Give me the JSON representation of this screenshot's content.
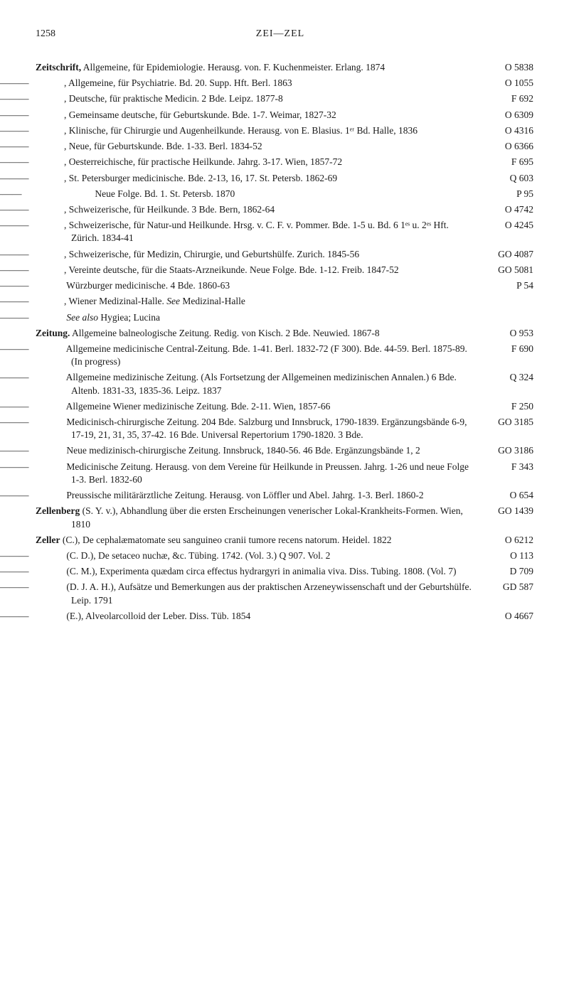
{
  "header": {
    "page_number": "1258",
    "running_head": "ZEI—ZEL"
  },
  "entries": [
    {
      "head": "Zeitschrift,",
      "text": " Allgemeine, für Epidemiologie. Herausg. von. F. Kuchenmeister. Erlang. 1874",
      "code": "O 5838",
      "indent": 0
    },
    {
      "text": ", Allgemeine, für Psychiatrie. Bd. 20. Supp. Hft. Berl. 1863",
      "code": "O 1055",
      "indent": 1
    },
    {
      "text": ", Deutsche, für praktische Medicin. 2 Bde. Leipz. 1877-8",
      "code": "F 692",
      "indent": 1
    },
    {
      "text": ", Gemeinsame deutsche, für Geburtskunde. Bde. 1-7. Weimar, 1827-32",
      "code": "O 6309",
      "indent": 1
    },
    {
      "text": ", Klinische, für Chirurgie und Augenheilkunde. Herausg. von E. Blasius. 1ᵉʳ Bd. Halle, 1836",
      "code": "O 4316",
      "indent": 1
    },
    {
      "text": ", Neue, für Geburtskunde. Bde. 1-33. Berl. 1834-52",
      "code": "O 6366",
      "indent": 1
    },
    {
      "text": ", Oesterreichische, für practische Heilkunde. Jahrg. 3-17. Wien, 1857-72",
      "code": "F 695",
      "indent": 1
    },
    {
      "text": ", St. Petersburger medicinische. Bde. 2-13, 16, 17. St. Petersb. 1862-69",
      "code": "Q 603",
      "indent": 1
    },
    {
      "text": " Neue Folge. Bd. 1. St. Petersb. 1870",
      "code": "P 95",
      "indent": 2
    },
    {
      "text": ", Schweizerische, für Heilkunde. 3 Bde. Bern, 1862-64",
      "code": "O 4742",
      "indent": 1
    },
    {
      "text": ", Schweizerische, für Natur-und Heilkunde. Hrsg. v. C. F. v. Pommer. Bde. 1-5 u. Bd. 6 1ᵉˢ u. 2ᵉˢ Hft. Zürich. 1834-41",
      "code": "O 4245",
      "indent": 1
    },
    {
      "text": ", Schweizerische, für Medizin, Chirurgie, und Geburtshülfe. Zurich. 1845-56",
      "code": "GO 4087",
      "indent": 1
    },
    {
      "text": ", Vereinte deutsche, für die Staats-Arzneikunde. Neue Folge. Bde. 1-12. Freib. 1847-52",
      "code": "GO 5081",
      "indent": 1
    },
    {
      "text": " Würzburger medicinische. 4 Bde. 1860-63",
      "code": "P 54",
      "indent": 1
    },
    {
      "text_italic_see": true,
      "text": ", Wiener Medizinal-Halle. ",
      "see": "See",
      "text2": " Medizinal-Halle",
      "code": "",
      "indent": 1
    },
    {
      "text_italic_see": true,
      "text": " ",
      "see": "See also",
      "text2": " Hygiea; Lucina",
      "code": "",
      "indent": 1
    },
    {
      "head": "Zeitung.",
      "text": " Allgemeine balneologische Zeitung. Redig. von Kisch. 2 Bde. Neuwied. 1867-8",
      "code": "O 953",
      "indent": 0
    },
    {
      "text": " Allgemeine medicinische Central-Zeitung. Bde. 1-41. Berl. 1832-72 (F 300). Bde. 44-59. Berl. 1875-89. (In progress)",
      "code": "F 690",
      "indent": 1
    },
    {
      "text": " Allgemeine medizinische Zeitung. (Als Fortsetzung der Allgemeinen medizinischen Annalen.) 6 Bde. Altenb. 1831-33, 1835-36. Leipz. 1837",
      "code": "Q 324",
      "indent": 1
    },
    {
      "text": " Allgemeine Wiener medizinische Zeitung. Bde. 2-11. Wien, 1857-66",
      "code": "F 250",
      "indent": 1
    },
    {
      "text": " Medicinisch-chirurgische Zeitung. 204 Bde. Salzburg und Innsbruck, 1790-1839. Ergänzungsbände 6-9, 17-19, 21, 31, 35, 37-42. 16 Bde. Universal Repertorium 1790-1820. 3 Bde.",
      "code": "GO 3185",
      "indent": 1
    },
    {
      "text": " Neue medizinisch-chirurgische Zeitung. Innsbruck, 1840-56. 46 Bde. Ergänzungsbände 1, 2",
      "code": "GO 3186",
      "indent": 1
    },
    {
      "text": " Medicinische Zeitung. Herausg. von dem Vereine für Heilkunde in Preussen. Jahrg. 1-26 und neue Folge 1-3. Berl. 1832-60",
      "code": "F 343",
      "indent": 1
    },
    {
      "text": " Preussische militärärztliche Zeitung. Herausg. von Löffler und Abel. Jahrg. 1-3. Berl. 1860-2",
      "code": "O 654",
      "indent": 1
    },
    {
      "head": "Zellenberg",
      "text": " (S. Y. v.), Abhandlung über die ersten Erscheinungen venerischer Lokal-Krankheits-Formen. Wien, 1810",
      "code": "GO 1439",
      "indent": 0
    },
    {
      "head": "Zeller",
      "text": " (C.), De cephalæmatomate seu sanguineo cranii tumore recens natorum. Heidel. 1822",
      "code": "O 6212",
      "indent": 0
    },
    {
      "text": " (C. D.), De setaceo nuchæ, &c. Tübing. 1742. (Vol. 3.) Q 907. Vol. 2",
      "code": "O 113",
      "indent": 1
    },
    {
      "text": " (C. M.), Experimenta quædam circa effectus hydrargyri in animalia viva. Diss. Tubing. 1808. (Vol. 7)",
      "code": "D 709",
      "indent": 1
    },
    {
      "text": " (D. J. A. H.), Aufsätze und Bemerkungen aus der praktischen Arzeneywissenschaft und der Geburtshülfe. Leip. 1791",
      "code": "GD 587",
      "indent": 1
    },
    {
      "text": " (E.), Alveolarcolloid der Leber. Diss. Tüb. 1854",
      "code": "O 4667",
      "indent": 1
    }
  ],
  "dash": "———"
}
